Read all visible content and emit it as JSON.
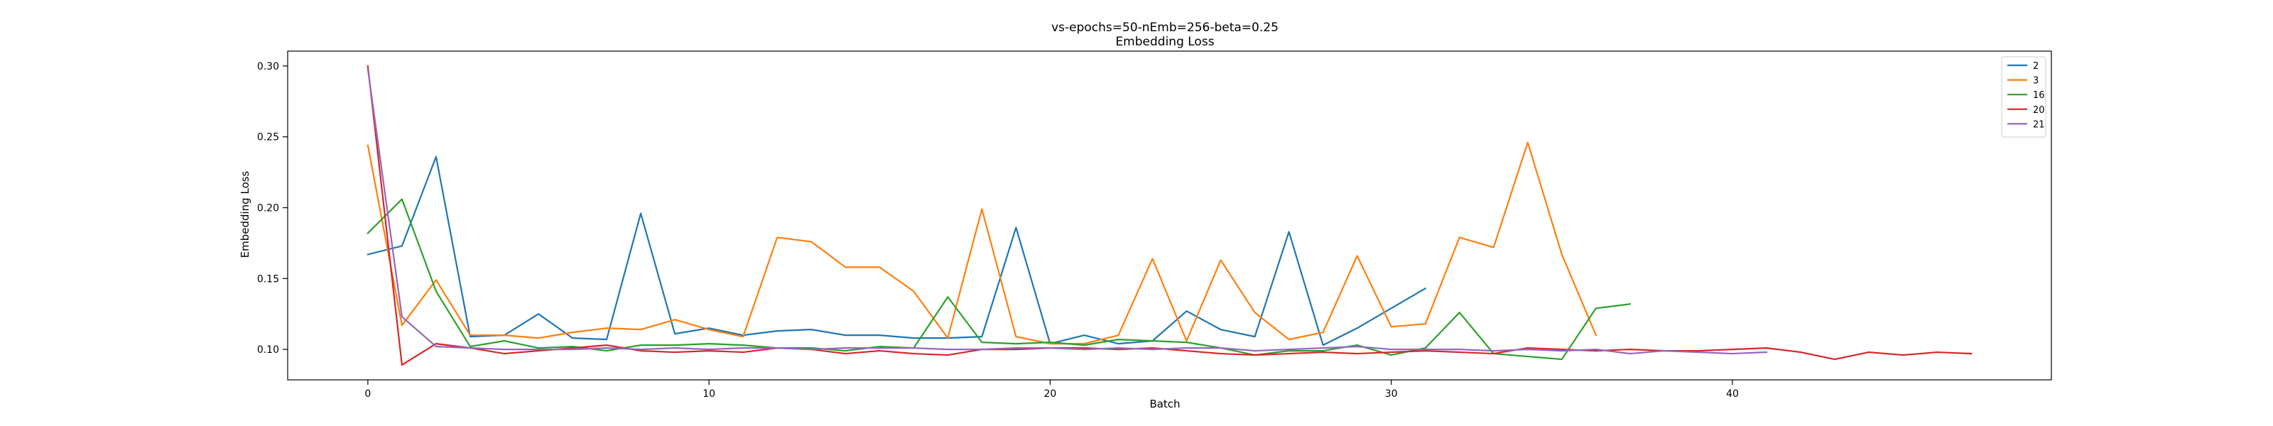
{
  "chart_data": {
    "type": "line",
    "title": "vs-epochs=50-nEmb=256-beta=0.25",
    "subtitle": "Embedding Loss",
    "xlabel": "Batch",
    "ylabel": "Embedding Loss",
    "xlim": [
      -2.35,
      49.35
    ],
    "ylim": [
      0.0785,
      0.3105
    ],
    "xticks": [
      0,
      10,
      20,
      30,
      40
    ],
    "xtick_labels": [
      "0",
      "10",
      "20",
      "30",
      "40"
    ],
    "yticks": [
      0.1,
      0.15,
      0.2,
      0.25,
      0.3
    ],
    "ytick_labels": [
      "0.10",
      "0.15",
      "0.20",
      "0.25",
      "0.30"
    ],
    "grid": false,
    "legend_position": "top-right",
    "series": [
      {
        "name": "2",
        "color": "#1f77b4",
        "x": [
          0,
          1,
          2,
          3,
          4,
          5,
          6,
          7,
          8,
          9,
          10,
          11,
          12,
          13,
          14,
          15,
          16,
          17,
          18,
          19,
          20,
          21,
          22,
          23,
          24,
          25,
          26,
          27,
          28,
          29,
          30,
          31
        ],
        "values": [
          0.167,
          0.173,
          0.236,
          0.109,
          0.11,
          0.125,
          0.108,
          0.107,
          0.196,
          0.111,
          0.115,
          0.11,
          0.113,
          0.114,
          0.11,
          0.11,
          0.108,
          0.108,
          0.109,
          0.186,
          0.104,
          0.11,
          0.104,
          0.106,
          0.127,
          0.114,
          0.109,
          0.183,
          0.103,
          0.115,
          0.129,
          0.143
        ]
      },
      {
        "name": "3",
        "color": "#ff7f0e",
        "x": [
          0,
          1,
          2,
          3,
          4,
          5,
          6,
          7,
          8,
          9,
          10,
          11,
          12,
          13,
          14,
          15,
          16,
          17,
          18,
          19,
          20,
          21,
          22,
          23,
          24,
          25,
          26,
          27,
          28,
          29,
          30,
          31,
          32,
          33,
          34,
          35,
          36
        ],
        "values": [
          0.244,
          0.117,
          0.149,
          0.11,
          0.11,
          0.108,
          0.112,
          0.115,
          0.114,
          0.121,
          0.114,
          0.109,
          0.179,
          0.176,
          0.158,
          0.158,
          0.141,
          0.108,
          0.199,
          0.109,
          0.104,
          0.104,
          0.11,
          0.164,
          0.106,
          0.163,
          0.126,
          0.107,
          0.112,
          0.166,
          0.116,
          0.118,
          0.179,
          0.172,
          0.246,
          0.167,
          0.11
        ]
      },
      {
        "name": "16",
        "color": "#2ca02c",
        "x": [
          0,
          1,
          2,
          3,
          4,
          5,
          6,
          7,
          8,
          9,
          10,
          11,
          12,
          13,
          14,
          15,
          16,
          17,
          18,
          19,
          20,
          21,
          22,
          23,
          24,
          25,
          26,
          27,
          28,
          29,
          30,
          31,
          32,
          33,
          34,
          35,
          36,
          37
        ],
        "values": [
          0.182,
          0.206,
          0.141,
          0.102,
          0.106,
          0.101,
          0.102,
          0.099,
          0.103,
          0.103,
          0.104,
          0.103,
          0.101,
          0.101,
          0.099,
          0.102,
          0.101,
          0.137,
          0.105,
          0.104,
          0.105,
          0.103,
          0.107,
          0.106,
          0.105,
          0.101,
          0.096,
          0.099,
          0.099,
          0.103,
          0.096,
          0.101,
          0.126,
          0.097,
          0.095,
          0.093,
          0.129,
          0.132
        ]
      },
      {
        "name": "20",
        "color": "#d62728",
        "x": [
          0,
          1,
          2,
          3,
          4,
          5,
          6,
          7,
          8,
          9,
          10,
          11,
          12,
          13,
          14,
          15,
          16,
          17,
          18,
          19,
          20,
          21,
          22,
          23,
          24,
          25,
          26,
          27,
          28,
          29,
          30,
          31,
          32,
          33,
          34,
          35,
          36,
          37,
          38,
          39,
          40,
          41,
          42,
          43,
          44,
          45,
          46,
          47
        ],
        "values": [
          0.3,
          0.089,
          0.104,
          0.101,
          0.097,
          0.099,
          0.101,
          0.103,
          0.099,
          0.098,
          0.099,
          0.098,
          0.101,
          0.1,
          0.097,
          0.099,
          0.097,
          0.096,
          0.1,
          0.1,
          0.101,
          0.101,
          0.1,
          0.101,
          0.099,
          0.097,
          0.096,
          0.097,
          0.098,
          0.097,
          0.098,
          0.099,
          0.098,
          0.097,
          0.101,
          0.1,
          0.099,
          0.1,
          0.099,
          0.099,
          0.1,
          0.101,
          0.098,
          0.093,
          0.098,
          0.096,
          0.098,
          0.097
        ]
      },
      {
        "name": "21",
        "color": "#9467bd",
        "x": [
          0,
          1,
          2,
          3,
          4,
          5,
          6,
          7,
          8,
          9,
          10,
          11,
          12,
          13,
          14,
          15,
          16,
          17,
          18,
          19,
          20,
          21,
          22,
          23,
          24,
          25,
          26,
          27,
          28,
          29,
          30,
          31,
          32,
          33,
          34,
          35,
          36,
          37,
          38,
          39,
          40,
          41
        ],
        "values": [
          0.298,
          0.123,
          0.102,
          0.101,
          0.1,
          0.1,
          0.1,
          0.101,
          0.1,
          0.101,
          0.1,
          0.101,
          0.101,
          0.1,
          0.101,
          0.101,
          0.101,
          0.1,
          0.1,
          0.101,
          0.101,
          0.1,
          0.101,
          0.1,
          0.101,
          0.101,
          0.099,
          0.1,
          0.101,
          0.102,
          0.1,
          0.1,
          0.1,
          0.099,
          0.1,
          0.099,
          0.1,
          0.097,
          0.099,
          0.098,
          0.097,
          0.098
        ]
      }
    ]
  }
}
